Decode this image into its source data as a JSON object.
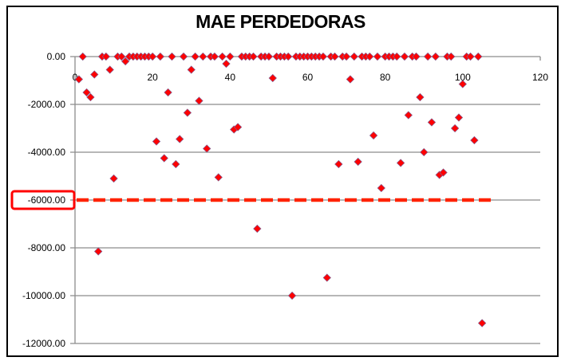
{
  "chart_data": {
    "type": "scatter",
    "title": "MAE PERDEDORAS",
    "xlabel": "",
    "ylabel": "",
    "xlim": [
      0,
      120
    ],
    "ylim": [
      -12000,
      0
    ],
    "x_ticks": [
      0,
      20,
      40,
      60,
      80,
      100,
      120
    ],
    "x_tick_labels": [
      "0",
      "20",
      "40",
      "60",
      "80",
      "100",
      "120"
    ],
    "y_ticks": [
      0,
      -2000,
      -4000,
      -6000,
      -8000,
      -10000,
      -12000
    ],
    "y_tick_labels": [
      "0.00",
      "-2000.00",
      "-4000.00",
      "-6000.00",
      "-8000.00",
      "-10000.00",
      "-12000.00"
    ],
    "grid": "horizontal",
    "legend": "none",
    "marker": "diamond",
    "marker_color": "#ff0000",
    "series": [
      {
        "name": "MAE",
        "points": [
          [
            1,
            -950
          ],
          [
            2,
            0
          ],
          [
            3,
            -1500
          ],
          [
            4,
            -1700
          ],
          [
            5,
            -750
          ],
          [
            6,
            -8150
          ],
          [
            7,
            0
          ],
          [
            8,
            0
          ],
          [
            9,
            -550
          ],
          [
            10,
            -5100
          ],
          [
            11,
            0
          ],
          [
            12,
            0
          ],
          [
            13,
            -200
          ],
          [
            14,
            0
          ],
          [
            15,
            0
          ],
          [
            16,
            0
          ],
          [
            17,
            0
          ],
          [
            18,
            0
          ],
          [
            19,
            0
          ],
          [
            20,
            0
          ],
          [
            21,
            -3550
          ],
          [
            22,
            0
          ],
          [
            23,
            -4250
          ],
          [
            24,
            -1500
          ],
          [
            25,
            0
          ],
          [
            26,
            -4500
          ],
          [
            27,
            -3450
          ],
          [
            28,
            0
          ],
          [
            29,
            -2350
          ],
          [
            30,
            -550
          ],
          [
            31,
            0
          ],
          [
            32,
            -1850
          ],
          [
            33,
            0
          ],
          [
            34,
            -3850
          ],
          [
            35,
            0
          ],
          [
            36,
            0
          ],
          [
            37,
            -5050
          ],
          [
            38,
            0
          ],
          [
            39,
            -300
          ],
          [
            40,
            0
          ],
          [
            41,
            -3050
          ],
          [
            42,
            -2950
          ],
          [
            43,
            0
          ],
          [
            44,
            0
          ],
          [
            45,
            0
          ],
          [
            46,
            0
          ],
          [
            47,
            -7200
          ],
          [
            48,
            0
          ],
          [
            49,
            0
          ],
          [
            50,
            0
          ],
          [
            51,
            -900
          ],
          [
            52,
            0
          ],
          [
            53,
            0
          ],
          [
            54,
            0
          ],
          [
            55,
            0
          ],
          [
            56,
            -10000
          ],
          [
            57,
            0
          ],
          [
            58,
            0
          ],
          [
            59,
            0
          ],
          [
            60,
            0
          ],
          [
            61,
            0
          ],
          [
            62,
            0
          ],
          [
            63,
            0
          ],
          [
            64,
            0
          ],
          [
            65,
            -9250
          ],
          [
            66,
            0
          ],
          [
            67,
            0
          ],
          [
            68,
            -4500
          ],
          [
            69,
            0
          ],
          [
            70,
            0
          ],
          [
            71,
            -950
          ],
          [
            72,
            0
          ],
          [
            73,
            -4400
          ],
          [
            74,
            0
          ],
          [
            75,
            0
          ],
          [
            76,
            0
          ],
          [
            77,
            -3300
          ],
          [
            78,
            0
          ],
          [
            79,
            -5500
          ],
          [
            80,
            0
          ],
          [
            81,
            0
          ],
          [
            82,
            0
          ],
          [
            83,
            0
          ],
          [
            84,
            -4450
          ],
          [
            85,
            0
          ],
          [
            86,
            -2450
          ],
          [
            87,
            0
          ],
          [
            88,
            0
          ],
          [
            89,
            -1700
          ],
          [
            90,
            -4000
          ],
          [
            91,
            0
          ],
          [
            92,
            -2750
          ],
          [
            93,
            0
          ],
          [
            94,
            -4950
          ],
          [
            95,
            -4850
          ],
          [
            96,
            0
          ],
          [
            97,
            0
          ],
          [
            98,
            -3000
          ],
          [
            99,
            -2550
          ],
          [
            100,
            -1150
          ],
          [
            101,
            0
          ],
          [
            102,
            0
          ],
          [
            103,
            -3500
          ],
          [
            104,
            0
          ],
          [
            105,
            -11150
          ]
        ]
      }
    ],
    "reference_line": {
      "value": -6000,
      "style": "dashed",
      "color": "#ff2200",
      "x_range": [
        0,
        108
      ],
      "highlighted_label": "-6000.00",
      "highlight_box_color": "#ff0000"
    }
  }
}
